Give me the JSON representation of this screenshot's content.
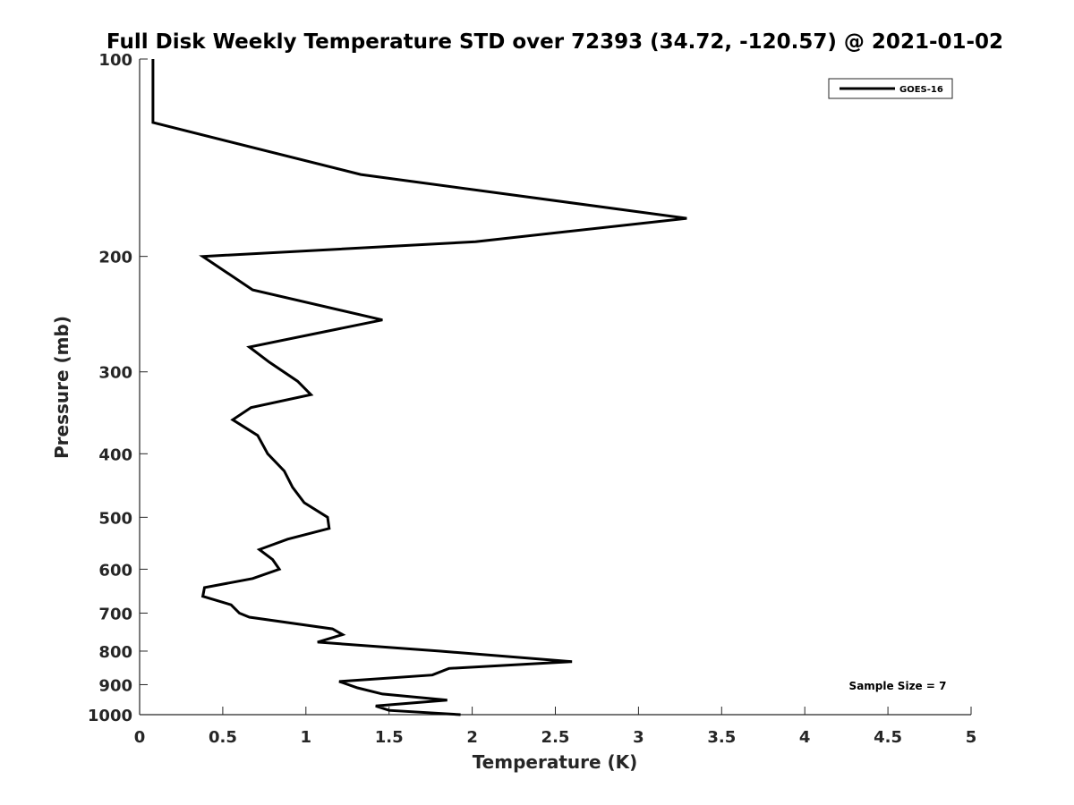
{
  "colors": {
    "series": "#000000",
    "axis": "#262626",
    "background": "#ffffff"
  },
  "chart_data": {
    "type": "line",
    "title": "Full Disk Weekly Temperature STD over 72393 (34.72, -120.57) @ 2021-01-02",
    "xlabel": "Temperature (K)",
    "ylabel": "Pressure (mb)",
    "xlim": [
      0,
      5
    ],
    "ylim": [
      100,
      1000
    ],
    "y_scale": "log",
    "y_reversed": true,
    "grid": false,
    "x_ticks": [
      0,
      0.5,
      1,
      1.5,
      2,
      2.5,
      3,
      3.5,
      4,
      4.5,
      5
    ],
    "x_tick_labels": [
      "0",
      "0.5",
      "1",
      "1.5",
      "2",
      "2.5",
      "3",
      "3.5",
      "4",
      "4.5",
      "5"
    ],
    "y_ticks": [
      100,
      200,
      300,
      400,
      500,
      600,
      700,
      800,
      900,
      1000
    ],
    "y_tick_labels": [
      "100",
      "200",
      "300",
      "400",
      "500",
      "600",
      "700",
      "800",
      "900",
      "1000"
    ],
    "legend": {
      "position": "top-right",
      "entries": [
        "GOES-16"
      ]
    },
    "annotations": [
      "Sample Size = 7"
    ],
    "series": [
      {
        "name": "GOES-16",
        "points": [
          [
            0.08,
            100
          ],
          [
            0.08,
            125
          ],
          [
            1.33,
            150
          ],
          [
            3.29,
            175
          ],
          [
            2.02,
            190
          ],
          [
            0.38,
            200
          ],
          [
            0.68,
            225
          ],
          [
            1.46,
            250
          ],
          [
            0.66,
            275
          ],
          [
            0.78,
            290
          ],
          [
            0.95,
            310
          ],
          [
            1.03,
            325
          ],
          [
            0.67,
            340
          ],
          [
            0.56,
            355
          ],
          [
            0.71,
            375
          ],
          [
            0.77,
            400
          ],
          [
            0.87,
            425
          ],
          [
            0.92,
            450
          ],
          [
            0.99,
            475
          ],
          [
            1.13,
            500
          ],
          [
            1.14,
            520
          ],
          [
            0.89,
            540
          ],
          [
            0.72,
            560
          ],
          [
            0.8,
            580
          ],
          [
            0.84,
            600
          ],
          [
            0.68,
            620
          ],
          [
            0.39,
            640
          ],
          [
            0.38,
            660
          ],
          [
            0.55,
            680
          ],
          [
            0.6,
            700
          ],
          [
            0.66,
            710
          ],
          [
            1.16,
            740
          ],
          [
            1.22,
            755
          ],
          [
            1.07,
            775
          ],
          [
            1.81,
            800
          ],
          [
            2.6,
            830
          ],
          [
            1.86,
            850
          ],
          [
            1.76,
            870
          ],
          [
            1.2,
            890
          ],
          [
            1.31,
            910
          ],
          [
            1.46,
            930
          ],
          [
            1.85,
            950
          ],
          [
            1.42,
            970
          ],
          [
            1.5,
            985
          ],
          [
            1.93,
            1000
          ]
        ]
      }
    ]
  }
}
